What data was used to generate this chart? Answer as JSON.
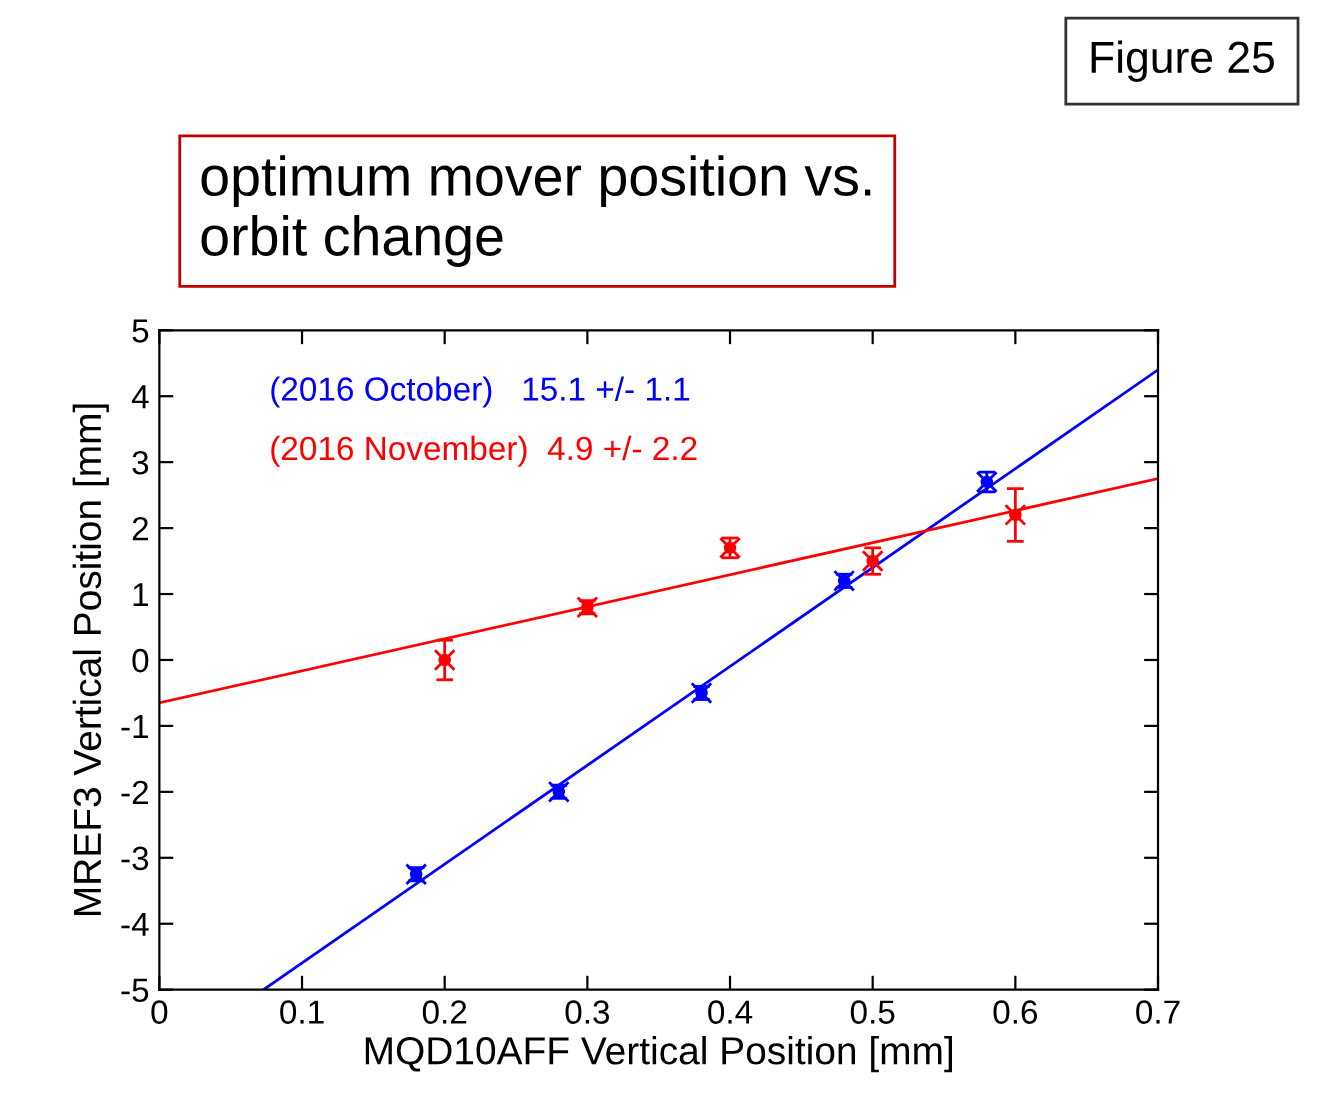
{
  "chart_data": {
    "type": "scatter",
    "title": "optimum mover position vs.\norbit change",
    "xlabel": "MQD10AFF Vertical Position [mm]",
    "ylabel": "MREF3 Vertical Position [mm]",
    "annotations": [
      "Figure 25"
    ],
    "series": [
      {
        "name": "(2016 October)   15.1 +/- 1.1",
        "color": "#0000ff",
        "x": [
          0.18,
          0.28,
          0.38,
          0.48,
          0.58
        ],
        "values": [
          -3.25,
          -2.0,
          -0.5,
          1.2,
          2.7
        ],
        "errors": [
          0.1,
          0.1,
          0.1,
          0.1,
          0.15
        ]
      },
      {
        "name": "(2016 November)  4.9 +/- 2.2",
        "color": "#ff0000",
        "x": [
          0.2,
          0.3,
          0.4,
          0.5,
          0.6
        ],
        "values": [
          0.0,
          0.8,
          1.7,
          1.5,
          2.2
        ],
        "errors": [
          0.3,
          0.1,
          0.15,
          0.2,
          0.4
        ]
      },
      {
        "type": "line",
        "marker": "none",
        "color": "#0000ff",
        "x": [
          0.073,
          0.7
        ],
        "values": [
          -5,
          4.4
        ]
      },
      {
        "type": "line",
        "marker": "none",
        "color": "#ff0000",
        "x": [
          0,
          0.7
        ],
        "values": [
          -0.65,
          2.75
        ]
      }
    ],
    "marker": "cross",
    "xlim": [
      0,
      0.7
    ],
    "ylim": [
      -5,
      5
    ],
    "xticks": [
      0,
      0.1,
      0.2,
      0.3,
      0.4,
      0.5,
      0.6,
      0.7
    ],
    "yticks": [
      -5,
      -4,
      -3,
      -2,
      -1,
      0,
      1,
      2,
      3,
      4,
      5
    ],
    "grid": false
  }
}
